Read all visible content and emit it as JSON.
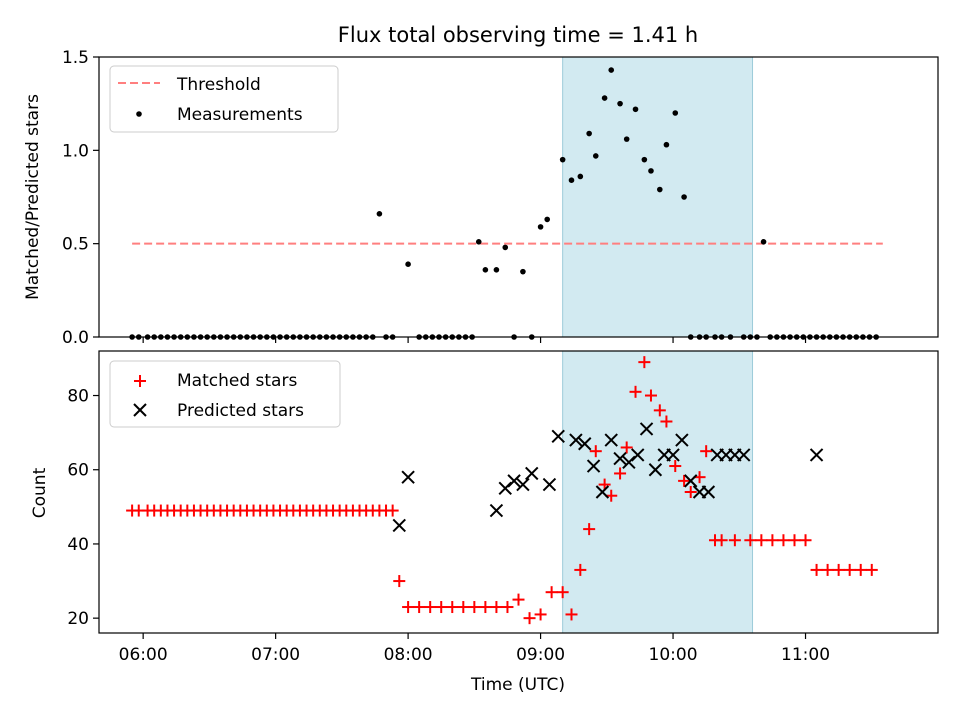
{
  "title": "Flux total observing time = 1.41 h",
  "chart_data": [
    {
      "type": "scatter",
      "ylabel": "Matched/Predicted stars",
      "xlim": [
        "05:40",
        "12:00"
      ],
      "ylim": [
        0,
        1.5
      ],
      "xticks": [
        "06:00",
        "07:00",
        "08:00",
        "09:00",
        "10:00",
        "11:00"
      ],
      "yticks": [
        "0.0",
        "0.5",
        "1.0",
        "1.5"
      ],
      "shaded_region": [
        "09:10",
        "10:36"
      ],
      "threshold": {
        "name": "Threshold",
        "y": 0.5,
        "x_from": "05:55",
        "x_to": "11:35",
        "color": "#ff7f7f"
      },
      "legend_placement": "top-left",
      "series": [
        {
          "name": "Measurements",
          "color": "#000000",
          "x": [
            "05:55",
            "05:58",
            "06:02",
            "06:05",
            "06:08",
            "06:11",
            "06:14",
            "06:17",
            "06:20",
            "06:23",
            "06:26",
            "06:29",
            "06:32",
            "06:35",
            "06:38",
            "06:41",
            "06:44",
            "06:47",
            "06:50",
            "06:53",
            "06:56",
            "06:59",
            "07:02",
            "07:05",
            "07:08",
            "07:11",
            "07:14",
            "07:17",
            "07:20",
            "07:23",
            "07:26",
            "07:29",
            "07:32",
            "07:35",
            "07:38",
            "07:41",
            "07:44",
            "07:47",
            "07:50",
            "07:53",
            "08:00",
            "08:05",
            "08:08",
            "08:11",
            "08:14",
            "08:17",
            "08:20",
            "08:23",
            "08:26",
            "08:29",
            "08:32",
            "08:35",
            "08:40",
            "08:44",
            "08:48",
            "08:52",
            "08:56",
            "09:00",
            "09:03",
            "09:10",
            "09:14",
            "09:18",
            "09:22",
            "09:25",
            "09:29",
            "09:32",
            "09:36",
            "09:39",
            "09:43",
            "09:47",
            "09:50",
            "09:54",
            "09:57",
            "10:01",
            "10:05",
            "10:08",
            "10:12",
            "10:15",
            "10:19",
            "10:22",
            "10:26",
            "10:32",
            "10:35",
            "10:38",
            "10:41",
            "10:44",
            "10:47",
            "10:50",
            "10:53",
            "10:56",
            "10:59",
            "11:02",
            "11:05",
            "11:08",
            "11:11",
            "11:14",
            "11:17",
            "11:20",
            "11:23",
            "11:26",
            "11:29",
            "11:32"
          ],
          "y": [
            0,
            0,
            0,
            0,
            0,
            0,
            0,
            0,
            0,
            0,
            0,
            0,
            0,
            0,
            0,
            0,
            0,
            0,
            0,
            0,
            0,
            0,
            0,
            0,
            0,
            0,
            0,
            0,
            0,
            0,
            0,
            0,
            0,
            0,
            0,
            0,
            0,
            0.66,
            0,
            0,
            0.39,
            0,
            0,
            0,
            0,
            0,
            0,
            0,
            0,
            0,
            0.51,
            0.36,
            0.36,
            0.48,
            0,
            0.35,
            0,
            0.59,
            0.63,
            0.95,
            0.84,
            0.86,
            1.09,
            0.97,
            1.28,
            1.43,
            1.25,
            1.06,
            1.22,
            0.95,
            0.89,
            0.79,
            1.03,
            1.2,
            0.75,
            0,
            0,
            0,
            0,
            0,
            0,
            0,
            0,
            0,
            0.51,
            0,
            0,
            0,
            0,
            0,
            0,
            0,
            0,
            0,
            0,
            0,
            0,
            0,
            0,
            0,
            0,
            0
          ]
        }
      ]
    },
    {
      "type": "scatter",
      "xlabel": "Time (UTC)",
      "ylabel": "Count",
      "xlim": [
        "05:40",
        "12:00"
      ],
      "ylim": [
        16,
        92
      ],
      "xticks": [
        "06:00",
        "07:00",
        "08:00",
        "09:00",
        "10:00",
        "11:00"
      ],
      "yticks": [
        "20",
        "40",
        "60",
        "80"
      ],
      "shaded_region": [
        "09:10",
        "10:36"
      ],
      "legend_placement": "top-left",
      "series": [
        {
          "name": "Matched stars",
          "color": "#ff0000",
          "marker": "plus",
          "x": [
            "05:55",
            "05:58",
            "06:02",
            "06:05",
            "06:08",
            "06:11",
            "06:14",
            "06:17",
            "06:20",
            "06:23",
            "06:26",
            "06:29",
            "06:32",
            "06:35",
            "06:38",
            "06:41",
            "06:44",
            "06:47",
            "06:50",
            "06:53",
            "06:56",
            "06:59",
            "07:02",
            "07:05",
            "07:08",
            "07:11",
            "07:14",
            "07:17",
            "07:20",
            "07:23",
            "07:26",
            "07:29",
            "07:32",
            "07:35",
            "07:38",
            "07:41",
            "07:44",
            "07:47",
            "07:50",
            "07:53",
            "07:56",
            "08:00",
            "08:05",
            "08:10",
            "08:15",
            "08:20",
            "08:25",
            "08:30",
            "08:35",
            "08:40",
            "08:45",
            "08:50",
            "08:55",
            "09:00",
            "09:05",
            "09:10",
            "09:14",
            "09:18",
            "09:22",
            "09:25",
            "09:29",
            "09:32",
            "09:36",
            "09:39",
            "09:43",
            "09:47",
            "09:50",
            "09:54",
            "09:57",
            "10:01",
            "10:05",
            "10:08",
            "10:12",
            "10:15",
            "10:19",
            "10:22",
            "10:28",
            "10:35",
            "10:40",
            "10:45",
            "10:50",
            "10:55",
            "11:00",
            "11:05",
            "11:10",
            "11:15",
            "11:20",
            "11:25",
            "11:30"
          ],
          "y": [
            49,
            49,
            49,
            49,
            49,
            49,
            49,
            49,
            49,
            49,
            49,
            49,
            49,
            49,
            49,
            49,
            49,
            49,
            49,
            49,
            49,
            49,
            49,
            49,
            49,
            49,
            49,
            49,
            49,
            49,
            49,
            49,
            49,
            49,
            49,
            49,
            49,
            49,
            49,
            49,
            30,
            23,
            23,
            23,
            23,
            23,
            23,
            23,
            23,
            23,
            23,
            25,
            20,
            21,
            27,
            27,
            21,
            33,
            44,
            65,
            56,
            53,
            59,
            66,
            81,
            89,
            80,
            76,
            73,
            61,
            57,
            54,
            58,
            65,
            41,
            41,
            41,
            41,
            41,
            41,
            41,
            41,
            41,
            33,
            33,
            33,
            33,
            33,
            33
          ]
        },
        {
          "name": "Predicted stars",
          "color": "#000000",
          "marker": "x",
          "x": [
            "07:56",
            "08:00",
            "08:40",
            "08:44",
            "08:48",
            "08:52",
            "08:56",
            "09:04",
            "09:08",
            "09:16",
            "09:20",
            "09:24",
            "09:28",
            "09:32",
            "09:36",
            "09:40",
            "09:44",
            "09:48",
            "09:52",
            "09:56",
            "10:00",
            "10:04",
            "10:08",
            "10:12",
            "10:16",
            "10:20",
            "10:24",
            "10:28",
            "10:32",
            "11:05"
          ],
          "y": [
            45,
            58,
            49,
            55,
            57,
            56,
            59,
            56,
            69,
            68,
            67,
            61,
            54,
            68,
            63,
            62,
            64,
            71,
            60,
            64,
            64,
            68,
            57,
            54,
            54,
            64,
            64,
            64,
            64,
            64
          ]
        }
      ]
    }
  ]
}
